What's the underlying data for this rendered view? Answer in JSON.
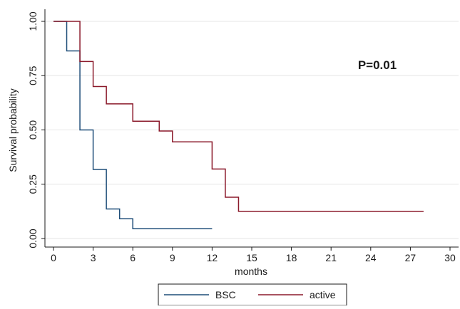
{
  "chart_data": {
    "type": "line",
    "subtype": "kaplan-meier step curves",
    "title": "",
    "xlabel": "months",
    "ylabel": "Survival probability",
    "xlim": [
      0,
      30
    ],
    "ylim": [
      0,
      1
    ],
    "x_ticks": [
      0,
      3,
      6,
      9,
      12,
      15,
      18,
      21,
      24,
      27,
      30
    ],
    "x_tick_labels": [
      "0",
      "3",
      "6",
      "9",
      "12",
      "15",
      "18",
      "21",
      "24",
      "27",
      "30"
    ],
    "y_ticks": [
      0,
      0.25,
      0.5,
      0.75,
      1.0
    ],
    "y_tick_labels": [
      "0.00",
      "0.25",
      "0.50",
      "0.75",
      "1.00"
    ],
    "grid": "horizontal",
    "legend_position": "bottom",
    "annotation": "P=0.01",
    "series": [
      {
        "name": "BSC",
        "color": "#1f4e79",
        "x": [
          0,
          1,
          2,
          3,
          4,
          5,
          6,
          12
        ],
        "y": [
          1.0,
          0.864,
          0.5,
          0.318,
          0.136,
          0.091,
          0.045,
          0.045
        ]
      },
      {
        "name": "active",
        "color": "#8b1a2b",
        "x": [
          0,
          2,
          3,
          4,
          6,
          8,
          9,
          12,
          13,
          14,
          28
        ],
        "y": [
          1.0,
          0.815,
          0.7,
          0.62,
          0.54,
          0.495,
          0.445,
          0.32,
          0.19,
          0.125,
          0.125
        ]
      }
    ]
  }
}
